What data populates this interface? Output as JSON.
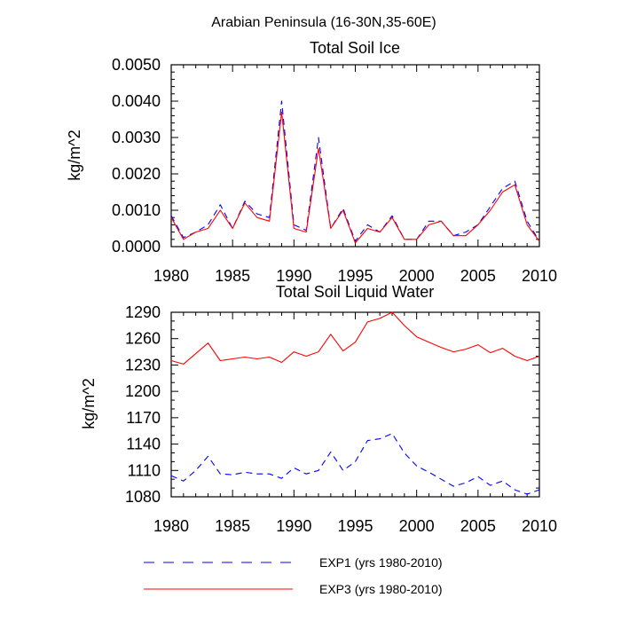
{
  "figure": {
    "title": "Arabian Peninsula (16-30N,35-60E)"
  },
  "colors": {
    "exp1": "#0000ff",
    "exp3": "#ff0000",
    "axis": "#000000"
  },
  "legend": {
    "placement": "bottom",
    "items": [
      {
        "label": "EXP1 (yrs 1980-2010)",
        "style": "dashed",
        "color": "#0000ff"
      },
      {
        "label": "EXP3 (yrs 1980-2010)",
        "style": "solid",
        "color": "#ff0000"
      }
    ]
  },
  "chart_data": [
    {
      "type": "line",
      "title": "Total Soil Ice",
      "xlabel": "",
      "ylabel": "kg/m^2",
      "xlim": [
        1980,
        2010
      ],
      "ylim": [
        0.0,
        0.005
      ],
      "xticks": [
        1980,
        1985,
        1990,
        1995,
        2000,
        2005,
        2010
      ],
      "yticks": [
        "0.0000",
        "0.0010",
        "0.0020",
        "0.0030",
        "0.0040",
        "0.0050"
      ],
      "grid": false,
      "x": [
        1980,
        1981,
        1982,
        1983,
        1984,
        1985,
        1986,
        1987,
        1988,
        1989,
        1990,
        1991,
        1992,
        1993,
        1994,
        1995,
        1996,
        1997,
        1998,
        1999,
        2000,
        2001,
        2002,
        2003,
        2004,
        2005,
        2006,
        2007,
        2008,
        2009,
        2010
      ],
      "series": [
        {
          "name": "EXP1 (yrs 1980-2010)",
          "style": "dashed",
          "values": [
            0.00085,
            0.00025,
            0.0004,
            0.0006,
            0.00115,
            0.0005,
            0.00125,
            0.0009,
            0.0008,
            0.004,
            0.0006,
            0.00045,
            0.003,
            0.0005,
            0.00105,
            0.00015,
            0.0006,
            0.0004,
            0.00085,
            0.0002,
            0.0002,
            0.0007,
            0.0007,
            0.0003,
            0.0004,
            0.0006,
            0.0011,
            0.0016,
            0.0018,
            0.0007,
            0.00015
          ]
        },
        {
          "name": "EXP3 (yrs 1980-2010)",
          "style": "solid",
          "values": [
            0.0008,
            0.0002,
            0.0004,
            0.0005,
            0.001,
            0.0005,
            0.0012,
            0.0008,
            0.0007,
            0.0037,
            0.0005,
            0.0004,
            0.0027,
            0.0005,
            0.001,
            0.0001,
            0.0005,
            0.0004,
            0.0008,
            0.0002,
            0.0002,
            0.0006,
            0.0007,
            0.0003,
            0.0003,
            0.0006,
            0.001,
            0.0015,
            0.0017,
            0.0006,
            0.00015
          ]
        }
      ]
    },
    {
      "type": "line",
      "title": "Total Soil Liquid Water",
      "xlabel": "",
      "ylabel": "kg/m^2",
      "xlim": [
        1980,
        2010
      ],
      "ylim": [
        1080,
        1290
      ],
      "xticks": [
        1980,
        1985,
        1990,
        1995,
        2000,
        2005,
        2010
      ],
      "yticks": [
        "1080",
        "1110",
        "1140",
        "1170",
        "1200",
        "1230",
        "1260",
        "1290"
      ],
      "grid": false,
      "x": [
        1980,
        1981,
        1982,
        1983,
        1984,
        1985,
        1986,
        1987,
        1988,
        1989,
        1990,
        1991,
        1992,
        1993,
        1994,
        1995,
        1996,
        1997,
        1998,
        1999,
        2000,
        2001,
        2002,
        2003,
        2004,
        2005,
        2006,
        2007,
        2008,
        2009,
        2010
      ],
      "series": [
        {
          "name": "EXP1 (yrs 1980-2010)",
          "style": "dashed",
          "values": [
            1104,
            1098,
            1110,
            1126,
            1106,
            1105,
            1108,
            1106,
            1106,
            1101,
            1113,
            1106,
            1110,
            1131,
            1110,
            1120,
            1144,
            1146,
            1152,
            1130,
            1115,
            1108,
            1100,
            1092,
            1096,
            1103,
            1093,
            1098,
            1088,
            1083,
            1088
          ]
        },
        {
          "name": "EXP3 (yrs 1980-2010)",
          "style": "solid",
          "values": [
            1235,
            1231,
            1243,
            1255,
            1235,
            1237,
            1239,
            1237,
            1239,
            1233,
            1245,
            1240,
            1245,
            1265,
            1246,
            1256,
            1279,
            1283,
            1290,
            1275,
            1262,
            1256,
            1250,
            1245,
            1248,
            1253,
            1244,
            1249,
            1240,
            1235,
            1240
          ]
        }
      ]
    }
  ]
}
